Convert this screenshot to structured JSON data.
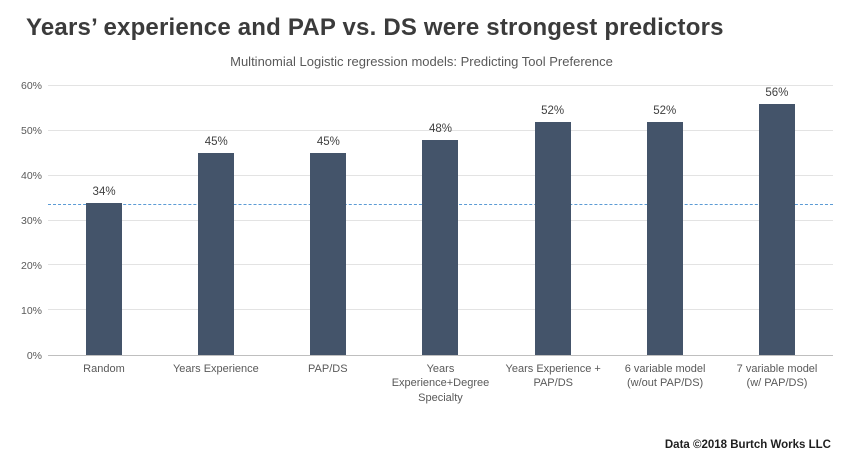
{
  "chart_data": {
    "type": "bar",
    "title": "Years’ experience and PAP vs. DS were strongest predictors",
    "subtitle": "Multinomial Logistic regression models: Predicting Tool Preference",
    "categories": [
      "Random",
      "Years Experience",
      "PAP/DS",
      "Years Experience+Degree Specialty",
      "Years Experience + PAP/DS",
      "6 variable model (w/out PAP/DS)",
      "7 variable model (w/ PAP/DS)"
    ],
    "values": [
      34,
      45,
      45,
      48,
      52,
      52,
      56
    ],
    "value_labels": [
      "34%",
      "45%",
      "45%",
      "48%",
      "52%",
      "52%",
      "56%"
    ],
    "ylim": [
      0,
      60
    ],
    "yticks": [
      "0%",
      "10%",
      "20%",
      "30%",
      "40%",
      "50%",
      "60%"
    ],
    "ytick_values": [
      0,
      10,
      20,
      30,
      40,
      50,
      60
    ],
    "reference_line_value": 33.5,
    "bar_color": "#44546a",
    "reference_line_color": "#5b9bd5",
    "grid": "horizontal",
    "legend": "none",
    "footer": "Data ©2018 Burtch Works LLC"
  }
}
